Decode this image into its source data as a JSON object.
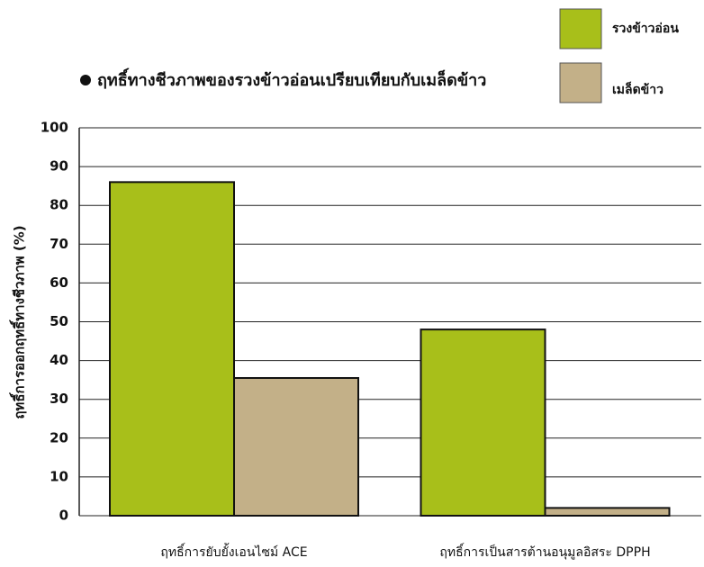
{
  "chart_data": {
    "type": "bar",
    "title": "ฤทธิ์ทางชีวภาพของรวงข้าวอ่อนเปรียบเทียบกับเมล็ดข้าว",
    "y_label": "ฤทธิ์การออกฤทธิ์ทางชีวภาพ (%)",
    "categories": [
      "ฤทธิ์การยับยั้งเอนไซม์ ACE",
      "ฤทธิ์การเป็นสารต้านอนุมูลอิสระ DPPH"
    ],
    "series": [
      {
        "name": "รวงข้าวอ่อน",
        "color": "#a8bf1a",
        "values": [
          86,
          48
        ]
      },
      {
        "name": "เมล็ดข้าว",
        "color": "#c3b088",
        "values": [
          35.5,
          2
        ]
      }
    ],
    "ylim": [
      0,
      100
    ],
    "yticks": [
      0,
      10,
      20,
      30,
      40,
      50,
      60,
      70,
      80,
      90,
      100
    ],
    "grid": true,
    "legend": "top-right"
  }
}
